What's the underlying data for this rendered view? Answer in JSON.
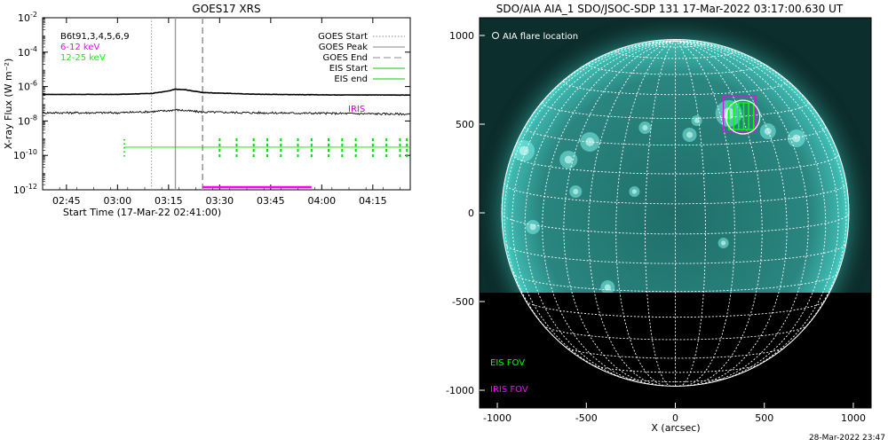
{
  "left_chart": {
    "title": "GOES17 XRS",
    "ylabel": "X-ray Flux (W m⁻²)",
    "xlabel": "Start Time (17-Mar-22 02:41:00)",
    "legend_left": [
      {
        "text": "B6t91,3,4,5,6,9",
        "color": "#000000"
      },
      {
        "text": "6-12 keV",
        "color": "#ff00ff"
      },
      {
        "text": "12-25 keV",
        "color": "#00ff00"
      }
    ],
    "legend_right": [
      {
        "text": "GOES Start",
        "style": "dotted",
        "color": "#888888"
      },
      {
        "text": "GOES Peak",
        "style": "solid",
        "color": "#888888"
      },
      {
        "text": "GOES End",
        "style": "dashed",
        "color": "#888888"
      },
      {
        "text": "EIS Start",
        "style": "solid",
        "color": "#00cc00"
      },
      {
        "text": "EIS end",
        "style": "solid",
        "color": "#00cc00"
      }
    ],
    "iris_label": "IRIS",
    "y_ticks": [
      {
        "exp": -2,
        "label_base": "10",
        "label_exp": "-2"
      },
      {
        "exp": -4,
        "label_base": "10",
        "label_exp": "-4"
      },
      {
        "exp": -6,
        "label_base": "10",
        "label_exp": "-6"
      },
      {
        "exp": -8,
        "label_base": "10",
        "label_exp": "-8"
      },
      {
        "exp": -10,
        "label_base": "10",
        "label_exp": "-10"
      },
      {
        "exp": -12,
        "label_base": "10",
        "label_exp": "-12"
      }
    ],
    "x_ticks": [
      "02:45",
      "03:00",
      "03:15",
      "03:30",
      "03:45",
      "04:00",
      "04:15"
    ]
  },
  "chart_data": [
    {
      "type": "line",
      "title": "GOES17 XRS",
      "xlabel": "Start Time (17-Mar-22 02:41:00)",
      "ylabel": "X-ray Flux (W m⁻²)",
      "yscale": "log",
      "ylim": [
        "1e-12",
        "1e-2"
      ],
      "xlim": [
        "02:38",
        "04:26"
      ],
      "categories": [
        "02:38",
        "02:50",
        "03:00",
        "03:10",
        "03:15",
        "03:17",
        "03:20",
        "03:25",
        "03:40",
        "04:00",
        "04:26"
      ],
      "series": [
        {
          "name": "B6t91,3,4,5,6,9",
          "color": "#000000",
          "values": [
            "3.5e-7",
            "3.5e-7",
            "3.5e-7",
            "4.0e-7",
            "5.5e-7",
            "7.0e-7",
            "6.5e-7",
            "4.5e-7",
            "3.6e-7",
            "3.3e-7",
            "3.2e-7"
          ]
        },
        {
          "name": "6-12 keV",
          "color": "#ff00ff",
          "values": [
            "3e-8",
            "3e-8",
            "3e-8",
            "3.5e-8",
            "4e-8",
            "4.5e-8",
            "4e-8",
            "3.3e-8",
            "3e-8",
            "2.8e-8",
            "2.5e-8"
          ]
        }
      ],
      "eis_constant_flux": "3e-10",
      "eis_start": "03:02",
      "goes_start": "03:10",
      "goes_peak": "03:17",
      "goes_end": "03:25",
      "iris_interval": [
        "03:25",
        "03:57"
      ],
      "eis_raster_times": [
        "03:30",
        "03:35",
        "03:40",
        "03:44",
        "03:48",
        "03:53",
        "03:57",
        "04:02",
        "04:06",
        "04:10",
        "04:15",
        "04:19",
        "04:23",
        "04:25"
      ]
    },
    {
      "type": "scatter",
      "title": "SDO/AIA AIA_1 SDO/JSOC-SDP 131 17-Mar-2022 03:17:00.630 UT",
      "xlabel": "X (arcsec)",
      "xlim": [
        -1100,
        1100
      ],
      "ylim": [
        -1100,
        1100
      ],
      "solar_radius_arcsec": 975,
      "grid_spacing_deg": 10,
      "flare_location": [
        380,
        540
      ],
      "eis_fov": {
        "x": [
          300,
          440
        ],
        "y": [
          470,
          620
        ]
      },
      "iris_fov": {
        "x": [
          270,
          450
        ],
        "y": [
          460,
          660
        ]
      },
      "data_cutoff_y": -460
    }
  ],
  "right_chart": {
    "title": "SDO/AIA AIA_1 SDO/JSOC-SDP 131 17-Mar-2022 03:17:00.630 UT",
    "flare_legend": "AIA flare location",
    "eis_fov_label": "EIS FOV",
    "iris_fov_label": "IRIS FOV",
    "xlabel": "X (arcsec)",
    "x_ticks": [
      "-1000",
      "-500",
      "0",
      "500",
      "1000"
    ],
    "y_ticks": [
      "1000",
      "500",
      "0",
      "-500",
      "-1000"
    ],
    "timestamp": "28-Mar-2022 23:47",
    "colors": {
      "disk": "#2b8f8a",
      "glow": "#43c9c0",
      "grid": "#ffffff",
      "eis": "#00ff00",
      "iris": "#c81ee0"
    }
  }
}
